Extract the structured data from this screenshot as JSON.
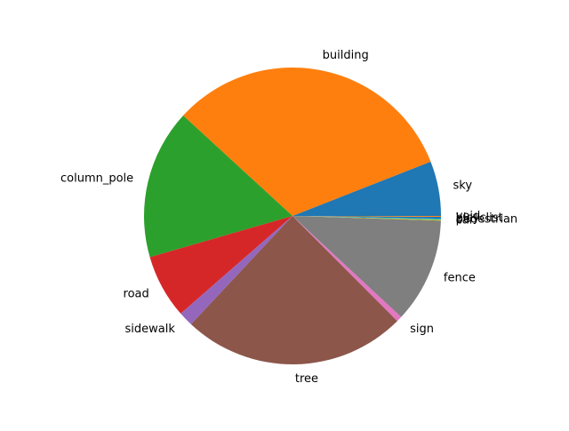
{
  "chart_data": {
    "type": "pie",
    "title": "",
    "start_angle_deg": 0,
    "counterclock": true,
    "slices": [
      {
        "label": "sky",
        "value": 6.0,
        "color": "#1f77b4"
      },
      {
        "label": "building",
        "value": 32.4,
        "color": "#ff7f0e"
      },
      {
        "label": "column_pole",
        "value": 16.4,
        "color": "#2ca02c"
      },
      {
        "label": "road",
        "value": 7.0,
        "color": "#d62728"
      },
      {
        "label": "sidewalk",
        "value": 1.6,
        "color": "#9467bd"
      },
      {
        "label": "tree",
        "value": 24.6,
        "color": "#8c564b"
      },
      {
        "label": "sign",
        "value": 0.6,
        "color": "#e377c2"
      },
      {
        "label": "fence",
        "value": 11.5,
        "color": "#7f7f7f"
      },
      {
        "label": "car",
        "value": 0.1,
        "color": "#bcbd22"
      },
      {
        "label": "pedestrian",
        "value": 0.1,
        "color": "#17becf"
      },
      {
        "label": "bicyclist",
        "value": 0.2,
        "color": "#1f77b4"
      },
      {
        "label": "void",
        "value": 0.1,
        "color": "#ff7f0e"
      }
    ]
  }
}
